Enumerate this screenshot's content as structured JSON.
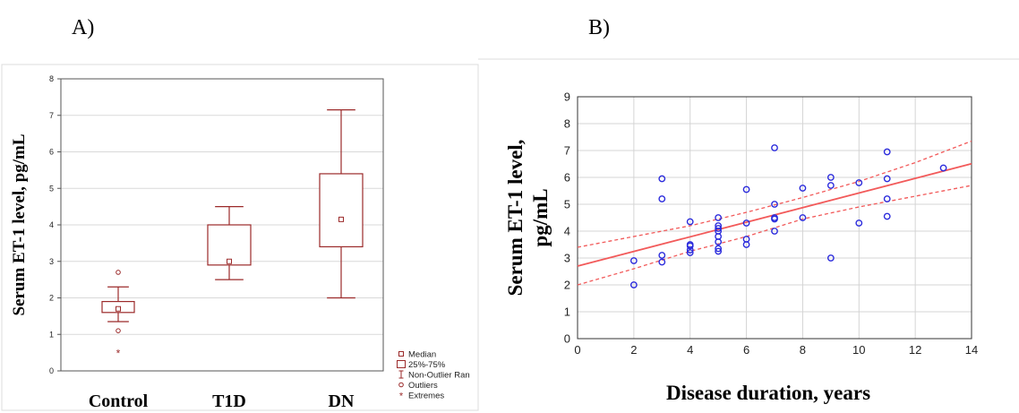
{
  "panels": {
    "a_label": "A)",
    "b_label": "B)"
  },
  "chart_data": [
    {
      "type": "box",
      "ylabel": "Serum ET-1 level, pg/mL",
      "ylim": [
        0,
        8
      ],
      "yticks": [
        0,
        1,
        2,
        3,
        4,
        5,
        6,
        7,
        8
      ],
      "grid": true,
      "categories": [
        "Control",
        "T1D",
        "DN"
      ],
      "boxes": [
        {
          "category": "Control",
          "median": 1.7,
          "q1": 1.6,
          "q3": 1.9,
          "whisker_low": 1.35,
          "whisker_high": 2.3,
          "outliers": [
            2.7,
            1.1
          ],
          "extremes": [
            0.5
          ]
        },
        {
          "category": "T1D",
          "median": 3.0,
          "q1": 2.9,
          "q3": 4.0,
          "whisker_low": 2.5,
          "whisker_high": 4.5,
          "outliers": [],
          "extremes": []
        },
        {
          "category": "DN",
          "median": 4.15,
          "q1": 3.4,
          "q3": 5.4,
          "whisker_low": 2.0,
          "whisker_high": 7.15,
          "outliers": [],
          "extremes": []
        }
      ],
      "legend": {
        "position": "bottom-right",
        "entries": [
          "Median",
          "25%-75%",
          "Non-Outlier Ran",
          "Outliers",
          "Extremes"
        ]
      },
      "color": "#9b2a2a"
    },
    {
      "type": "scatter",
      "xlabel": "Disease duration, years",
      "ylabel": "Serum ET-1 level, pg/mL",
      "ylabel_lines": [
        "Serum ET-1 level,",
        "pg/mL"
      ],
      "xlim": [
        0,
        14
      ],
      "ylim": [
        0,
        9
      ],
      "xticks": [
        0,
        2,
        4,
        6,
        8,
        10,
        12,
        14
      ],
      "yticks": [
        0,
        1,
        2,
        3,
        4,
        5,
        6,
        7,
        8,
        9
      ],
      "grid": true,
      "points": [
        [
          2,
          2.9
        ],
        [
          2,
          2.0
        ],
        [
          3,
          5.95
        ],
        [
          3,
          5.2
        ],
        [
          3,
          3.1
        ],
        [
          3,
          2.85
        ],
        [
          4,
          4.35
        ],
        [
          4,
          3.5
        ],
        [
          4,
          3.45
        ],
        [
          4,
          3.3
        ],
        [
          4,
          3.2
        ],
        [
          5,
          4.5
        ],
        [
          5,
          4.2
        ],
        [
          5,
          4.1
        ],
        [
          5,
          4.0
        ],
        [
          5,
          3.8
        ],
        [
          5,
          3.6
        ],
        [
          5,
          3.35
        ],
        [
          5,
          3.25
        ],
        [
          6,
          5.55
        ],
        [
          6,
          4.3
        ],
        [
          6,
          3.7
        ],
        [
          6,
          3.5
        ],
        [
          7,
          7.1
        ],
        [
          7,
          5.0
        ],
        [
          7,
          4.5
        ],
        [
          7,
          4.45
        ],
        [
          7,
          4.0
        ],
        [
          8,
          5.6
        ],
        [
          8,
          4.5
        ],
        [
          9,
          6.0
        ],
        [
          9,
          5.7
        ],
        [
          9,
          3.0
        ],
        [
          10,
          5.8
        ],
        [
          10,
          4.3
        ],
        [
          11,
          6.95
        ],
        [
          11,
          5.95
        ],
        [
          11,
          5.2
        ],
        [
          11,
          4.55
        ],
        [
          13,
          6.35
        ]
      ],
      "regression": {
        "intercept": 2.7,
        "slope": 0.272
      },
      "confidence_band": {
        "x": [
          0,
          2,
          4,
          6,
          8,
          10,
          12,
          14
        ],
        "upper": [
          3.4,
          3.8,
          4.2,
          4.7,
          5.25,
          5.85,
          6.55,
          7.35
        ],
        "lower": [
          2.0,
          2.6,
          3.25,
          3.8,
          4.45,
          4.9,
          5.3,
          5.7
        ]
      },
      "point_color": "#2b2bdc",
      "line_color": "#f25a5a"
    }
  ]
}
